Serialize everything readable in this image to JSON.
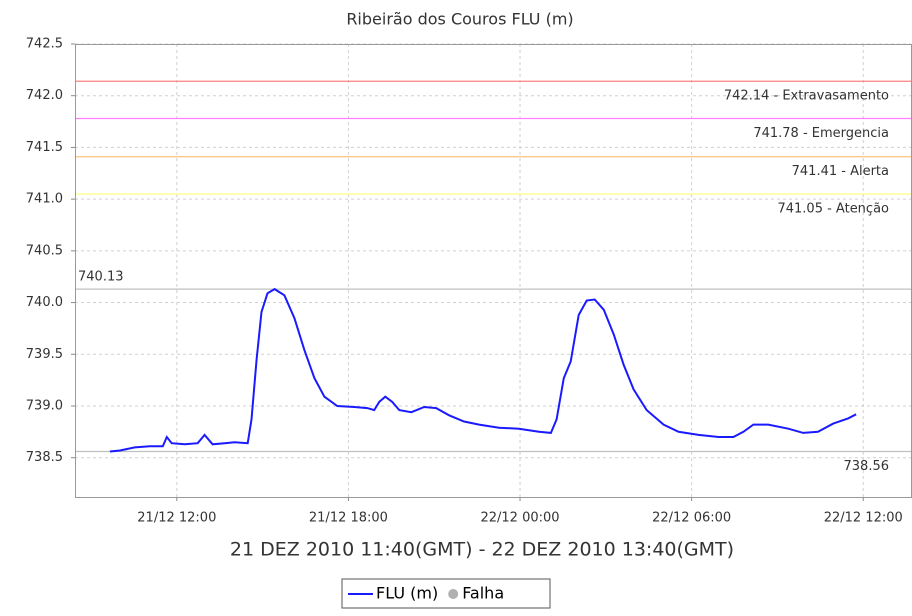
{
  "chart_data": {
    "type": "line",
    "title": "Ribeirão dos Couros FLU (m)",
    "x_label": "21 DEZ 2010 11:40(GMT) - 22 DEZ 2010 13:40(GMT)",
    "x": [
      9.66,
      10.01,
      10.53,
      11.06,
      11.51,
      11.65,
      11.82,
      12.28,
      12.73,
      12.97,
      13.25,
      13.67,
      14.02,
      14.48,
      14.61,
      14.79,
      14.96,
      15.17,
      15.42,
      15.76,
      16.11,
      16.46,
      16.81,
      17.16,
      17.61,
      18.21,
      18.66,
      18.9,
      19.08,
      19.29,
      19.53,
      19.78,
      20.2,
      20.65,
      21.07,
      21.52,
      22.04,
      22.57,
      23.26,
      23.96,
      24.66,
      25.08,
      25.28,
      25.53,
      25.77,
      26.05,
      26.33,
      26.61,
      26.93,
      27.28,
      27.62,
      27.97,
      28.43,
      29.02,
      29.54,
      30.24,
      30.94,
      31.46,
      31.81,
      32.16,
      32.68,
      33.38,
      33.9,
      34.42,
      34.95,
      35.47,
      35.75
    ],
    "series": [
      {
        "name": "FLU (m)",
        "color": "#1a1aff",
        "values": [
          738.56,
          738.57,
          738.6,
          738.61,
          738.61,
          738.7,
          738.64,
          738.63,
          738.64,
          738.72,
          738.63,
          738.64,
          738.65,
          738.64,
          738.87,
          739.45,
          739.91,
          740.09,
          740.13,
          740.07,
          739.85,
          739.54,
          739.27,
          739.09,
          739.0,
          738.99,
          738.98,
          738.96,
          739.04,
          739.09,
          739.04,
          738.96,
          738.94,
          738.99,
          738.98,
          738.91,
          738.85,
          738.82,
          738.79,
          738.78,
          738.75,
          738.74,
          738.87,
          739.27,
          739.43,
          739.88,
          740.02,
          740.03,
          739.93,
          739.69,
          739.4,
          739.16,
          738.96,
          738.82,
          738.75,
          738.72,
          738.7,
          738.7,
          738.75,
          738.82,
          738.82,
          738.78,
          738.74,
          738.75,
          738.83,
          738.88,
          738.92
        ]
      }
    ],
    "legend_extra": [
      {
        "name": "Falha",
        "color": "#b0b0b0"
      }
    ],
    "thresholds": [
      {
        "value": 742.14,
        "label": "742.14 - Extravasamento",
        "color": "#ff8080",
        "anchor": "right"
      },
      {
        "value": 741.78,
        "label": "741.78 - Emergencia",
        "color": "#ff80ff",
        "anchor": "right"
      },
      {
        "value": 741.41,
        "label": "741.41 - Alerta",
        "color": "#ffc080",
        "anchor": "right"
      },
      {
        "value": 741.05,
        "label": "741.05 - Atenção",
        "color": "#ffff80",
        "anchor": "right"
      },
      {
        "value": 740.13,
        "label": "740.13",
        "color": "#c0c0c0",
        "anchor": "left"
      },
      {
        "value": 738.56,
        "label": "738.56",
        "color": "#c0c0c0",
        "anchor": "right"
      }
    ],
    "xlim": [
      8.44,
      37.67
    ],
    "xticks": [
      {
        "value": 12,
        "label": "21/12 12:00"
      },
      {
        "value": 18,
        "label": "21/12 18:00"
      },
      {
        "value": 24,
        "label": "22/12 00:00"
      },
      {
        "value": 30,
        "label": "22/12 06:00"
      },
      {
        "value": 36,
        "label": "22/12 12:00"
      }
    ],
    "ylim": [
      738.12,
      742.5
    ],
    "yticks": [
      742.5,
      {
        "value": 742,
        "label": "742.0"
      },
      741.5,
      {
        "value": 741,
        "label": "741.0"
      },
      740.5,
      {
        "value": 740,
        "label": "740.0"
      },
      739.5,
      {
        "value": 739,
        "label": "739.0"
      },
      738.5
    ],
    "grid": true
  }
}
